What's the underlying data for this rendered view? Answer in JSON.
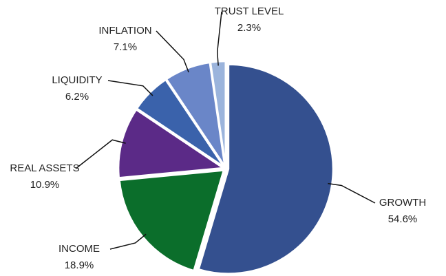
{
  "chart_data": {
    "type": "pie",
    "categories": [
      "GROWTH",
      "INCOME",
      "REAL ASSETS",
      "LIQUIDITY",
      "INFLATION",
      "TRUST LEVEL"
    ],
    "values": [
      54.6,
      18.9,
      10.9,
      6.2,
      7.1,
      2.3
    ],
    "value_labels": [
      "54.6%",
      "18.9%",
      "10.9%",
      "6.2%",
      "7.1%",
      "2.3%"
    ],
    "colors": [
      "#34508f",
      "#0b6e2b",
      "#5b2a87",
      "#3a62ab",
      "#6a86c8",
      "#9bb4dc"
    ]
  }
}
